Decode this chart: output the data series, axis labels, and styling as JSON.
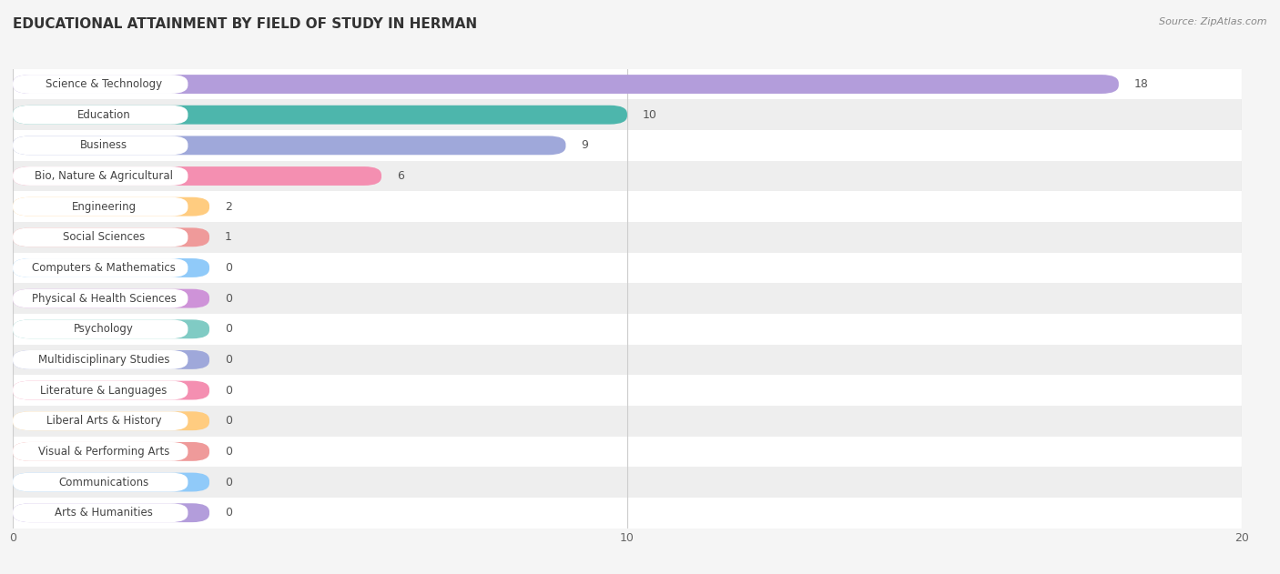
{
  "title": "EDUCATIONAL ATTAINMENT BY FIELD OF STUDY IN HERMAN",
  "source": "Source: ZipAtlas.com",
  "categories": [
    "Science & Technology",
    "Education",
    "Business",
    "Bio, Nature & Agricultural",
    "Engineering",
    "Social Sciences",
    "Computers & Mathematics",
    "Physical & Health Sciences",
    "Psychology",
    "Multidisciplinary Studies",
    "Literature & Languages",
    "Liberal Arts & History",
    "Visual & Performing Arts",
    "Communications",
    "Arts & Humanities"
  ],
  "values": [
    18,
    10,
    9,
    6,
    2,
    1,
    0,
    0,
    0,
    0,
    0,
    0,
    0,
    0,
    0
  ],
  "bar_colors": [
    "#b39ddb",
    "#4db6ac",
    "#9fa8da",
    "#f48fb1",
    "#ffcc80",
    "#ef9a9a",
    "#90caf9",
    "#ce93d8",
    "#80cbc4",
    "#9fa8da",
    "#f48fb1",
    "#ffcc80",
    "#ef9a9a",
    "#90caf9",
    "#b39ddb"
  ],
  "xlim": [
    0,
    20
  ],
  "xticks": [
    0,
    10,
    20
  ],
  "background_color": "#f5f5f5",
  "title_fontsize": 11,
  "bar_height": 0.62,
  "zero_bar_width": 3.2
}
